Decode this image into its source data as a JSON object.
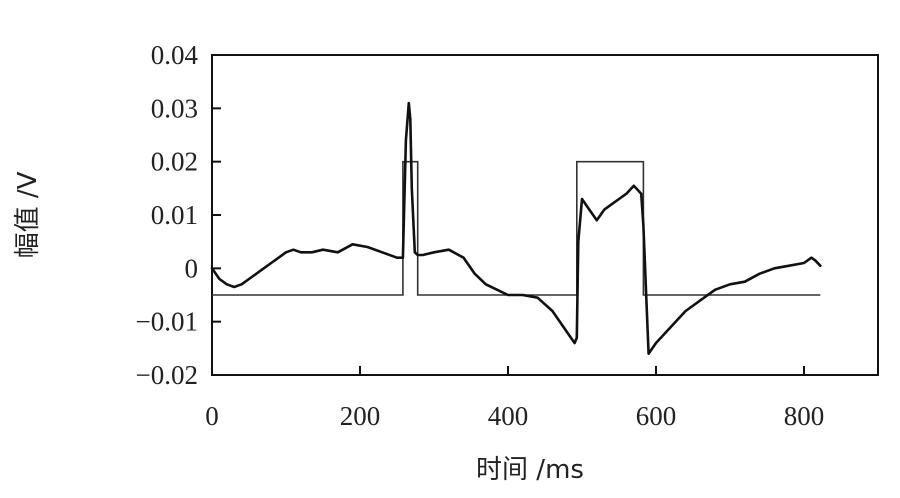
{
  "chart_data": {
    "type": "line",
    "xlabel": "时间 /ms",
    "ylabel": "幅值 /V",
    "xlim": [
      0,
      900
    ],
    "ylim": [
      -0.02,
      0.04
    ],
    "x_ticks": [
      0,
      200,
      400,
      600,
      800
    ],
    "y_ticks": [
      -0.02,
      -0.01,
      0,
      0.01,
      0.02,
      0.03,
      0.04
    ],
    "x_tick_labels": [
      "0",
      "200",
      "400",
      "600",
      "800"
    ],
    "y_tick_labels": [
      "−0.02",
      "−0.01",
      "0",
      "0.01",
      "0.02",
      "0.03",
      "0.04"
    ],
    "grid": false,
    "series": [
      {
        "style": "thin-gray-step",
        "x": [
          0,
          258,
          258,
          278,
          278,
          493,
          493,
          583,
          583,
          822
        ],
        "y": [
          -0.005,
          -0.005,
          0.02,
          0.02,
          -0.005,
          -0.005,
          0.02,
          0.02,
          -0.005,
          -0.005
        ]
      },
      {
        "style": "thick-black",
        "x": [
          0,
          10,
          20,
          30,
          40,
          50,
          60,
          70,
          80,
          90,
          100,
          110,
          120,
          135,
          150,
          170,
          190,
          210,
          230,
          250,
          258,
          262,
          266,
          268,
          270,
          274,
          278,
          285,
          300,
          320,
          340,
          355,
          370,
          385,
          400,
          420,
          440,
          460,
          475,
          485,
          490,
          493,
          495,
          500,
          510,
          520,
          530,
          540,
          550,
          560,
          570,
          580,
          583,
          587,
          590,
          600,
          620,
          640,
          660,
          680,
          700,
          720,
          740,
          760,
          780,
          800,
          810,
          815,
          822
        ],
        "y": [
          0.0,
          -0.002,
          -0.003,
          -0.0035,
          -0.003,
          -0.002,
          -0.001,
          0.0,
          0.001,
          0.002,
          0.003,
          0.0035,
          0.003,
          0.003,
          0.0035,
          0.003,
          0.0045,
          0.004,
          0.003,
          0.002,
          0.002,
          0.024,
          0.031,
          0.028,
          0.015,
          0.003,
          0.0025,
          0.0025,
          0.003,
          0.0035,
          0.002,
          -0.001,
          -0.003,
          -0.004,
          -0.005,
          -0.005,
          -0.0055,
          -0.008,
          -0.011,
          -0.013,
          -0.014,
          -0.013,
          0.005,
          0.013,
          0.011,
          0.009,
          0.011,
          0.012,
          0.013,
          0.014,
          0.0155,
          0.014,
          0.008,
          -0.006,
          -0.016,
          -0.014,
          -0.011,
          -0.008,
          -0.006,
          -0.004,
          -0.003,
          -0.0025,
          -0.001,
          0.0,
          0.0005,
          0.001,
          0.002,
          0.0015,
          0.0005
        ]
      }
    ]
  }
}
